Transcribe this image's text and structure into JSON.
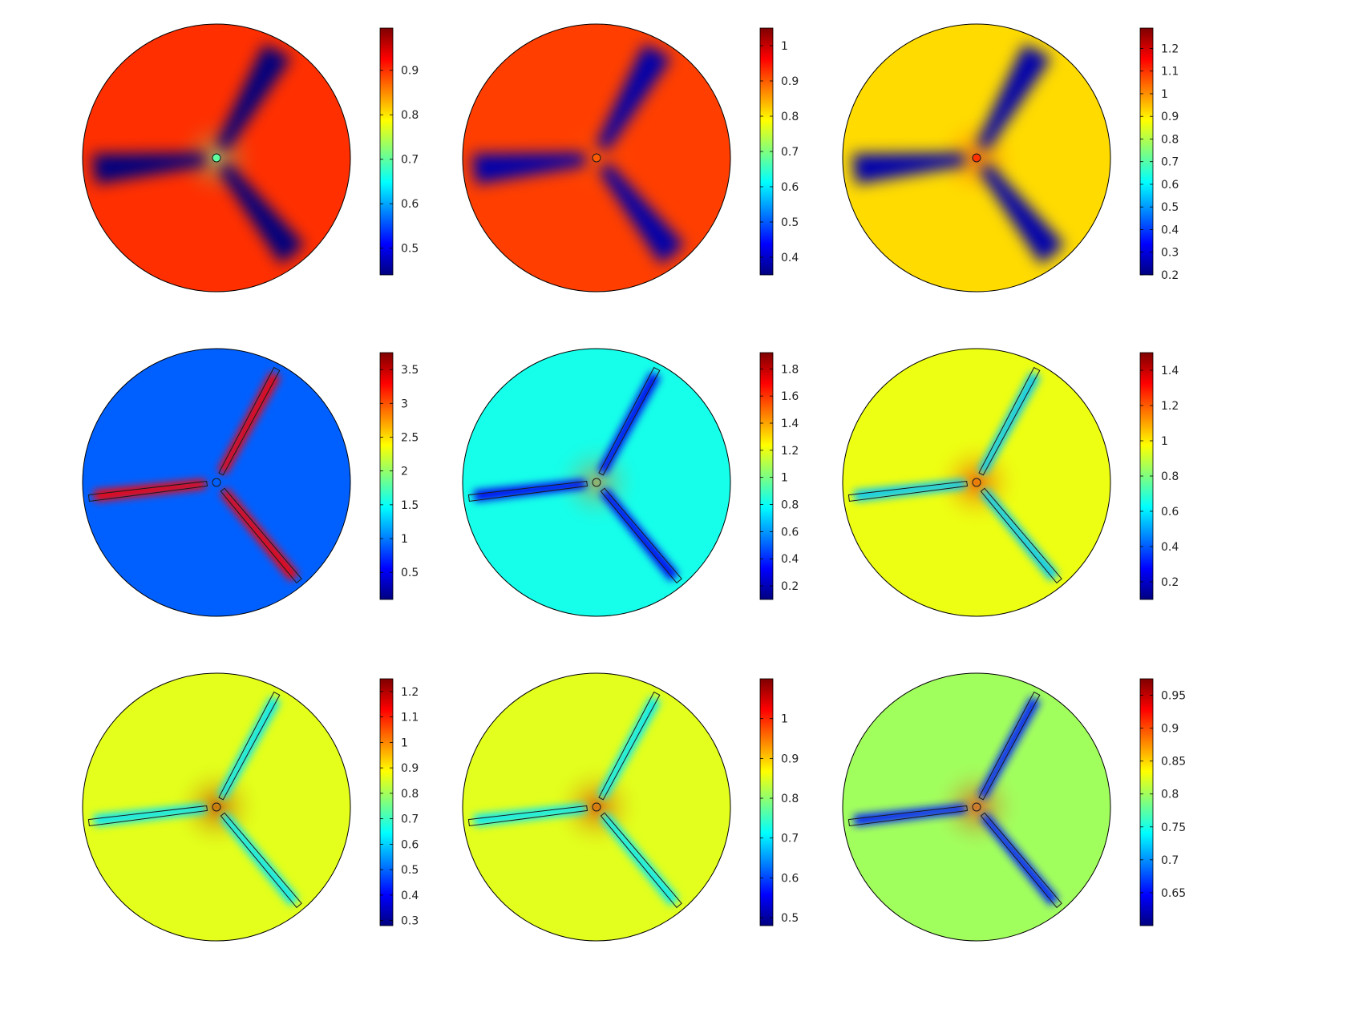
{
  "figure": {
    "background": "#ffffff",
    "colormap": [
      "#00007f",
      "#0000ff",
      "#007fff",
      "#00ffff",
      "#7fff7f",
      "#ffff00",
      "#ff7f00",
      "#ff0000",
      "#7f0000"
    ],
    "panels": [
      {
        "id": "r1c1",
        "ticks": [
          "0.5",
          "0.6",
          "0.7",
          "0.8",
          "0.9"
        ],
        "tick_values": [
          0.5,
          0.6,
          0.7,
          0.8,
          0.9
        ],
        "range": [
          0.44,
          0.995
        ],
        "background_value": 0.9,
        "wake_value": 0.44,
        "show_outline": false,
        "hub_value": 0.7
      },
      {
        "id": "r1c2",
        "ticks": [
          "0.4",
          "0.5",
          "0.6",
          "0.7",
          "0.8",
          "0.9",
          "1"
        ],
        "tick_values": [
          0.4,
          0.5,
          0.6,
          0.7,
          0.8,
          0.9,
          1.0
        ],
        "range": [
          0.35,
          1.05
        ],
        "background_value": 0.92,
        "wake_value": 0.38,
        "show_outline": false,
        "hub_value": 0.9
      },
      {
        "id": "r1c3",
        "ticks": [
          "0.2",
          "0.3",
          "0.4",
          "0.5",
          "0.6",
          "0.7",
          "0.8",
          "0.9",
          "1",
          "1.1",
          "1.2"
        ],
        "tick_values": [
          0.2,
          0.3,
          0.4,
          0.5,
          0.6,
          0.7,
          0.8,
          0.9,
          1.0,
          1.1,
          1.2
        ],
        "range": [
          0.2,
          1.29
        ],
        "background_value": 0.92,
        "wake_value": 0.25,
        "show_outline": false,
        "hub_value": 1.1
      },
      {
        "id": "r2c1",
        "ticks": [
          "0.5",
          "1",
          "1.5",
          "2",
          "2.5",
          "3",
          "3.5"
        ],
        "tick_values": [
          0.5,
          1.0,
          1.5,
          2.0,
          2.5,
          3.0,
          3.5
        ],
        "range": [
          0.1,
          3.75
        ],
        "background_value": 0.9,
        "wake_value": 3.3,
        "show_outline": true,
        "hub_value": 0.9
      },
      {
        "id": "r2c2",
        "ticks": [
          "0.2",
          "0.4",
          "0.6",
          "0.8",
          "1",
          "1.2",
          "1.4",
          "1.6",
          "1.8"
        ],
        "tick_values": [
          0.2,
          0.4,
          0.6,
          0.8,
          1.0,
          1.2,
          1.4,
          1.6,
          1.8
        ],
        "range": [
          0.1,
          1.92
        ],
        "background_value": 0.82,
        "wake_value": 0.3,
        "show_outline": true,
        "hub_value": 1.5
      },
      {
        "id": "r2c3",
        "ticks": [
          "0.2",
          "0.4",
          "0.6",
          "0.8",
          "1",
          "1.2",
          "1.4"
        ],
        "tick_values": [
          0.2,
          0.4,
          0.6,
          0.8,
          1.0,
          1.2,
          1.4
        ],
        "range": [
          0.1,
          1.5
        ],
        "background_value": 0.95,
        "wake_value": 0.55,
        "show_outline": true,
        "hub_value": 1.35
      },
      {
        "id": "r3c1",
        "ticks": [
          "0.3",
          "0.4",
          "0.5",
          "0.6",
          "0.7",
          "0.8",
          "0.9",
          "1",
          "1.1",
          "1.2"
        ],
        "tick_values": [
          0.3,
          0.4,
          0.5,
          0.6,
          0.7,
          0.8,
          0.9,
          1.0,
          1.1,
          1.2
        ],
        "range": [
          0.28,
          1.25
        ],
        "background_value": 0.86,
        "wake_value": 0.62,
        "show_outline": true,
        "hub_value": 1.2
      },
      {
        "id": "r3c2",
        "ticks": [
          "0.5",
          "0.6",
          "0.7",
          "0.8",
          "0.9",
          "1"
        ],
        "tick_values": [
          0.5,
          0.6,
          0.7,
          0.8,
          0.9,
          1.0
        ],
        "range": [
          0.48,
          1.1
        ],
        "background_value": 0.85,
        "wake_value": 0.7,
        "show_outline": true,
        "hub_value": 1.05
      },
      {
        "id": "r3c3",
        "ticks": [
          "0.65",
          "0.7",
          "0.75",
          "0.8",
          "0.85",
          "0.9",
          "0.95"
        ],
        "tick_values": [
          0.65,
          0.7,
          0.75,
          0.8,
          0.85,
          0.9,
          0.95
        ],
        "range": [
          0.6,
          0.975
        ],
        "background_value": 0.8,
        "wake_value": 0.66,
        "show_outline": true,
        "hub_value": 0.93
      }
    ]
  }
}
